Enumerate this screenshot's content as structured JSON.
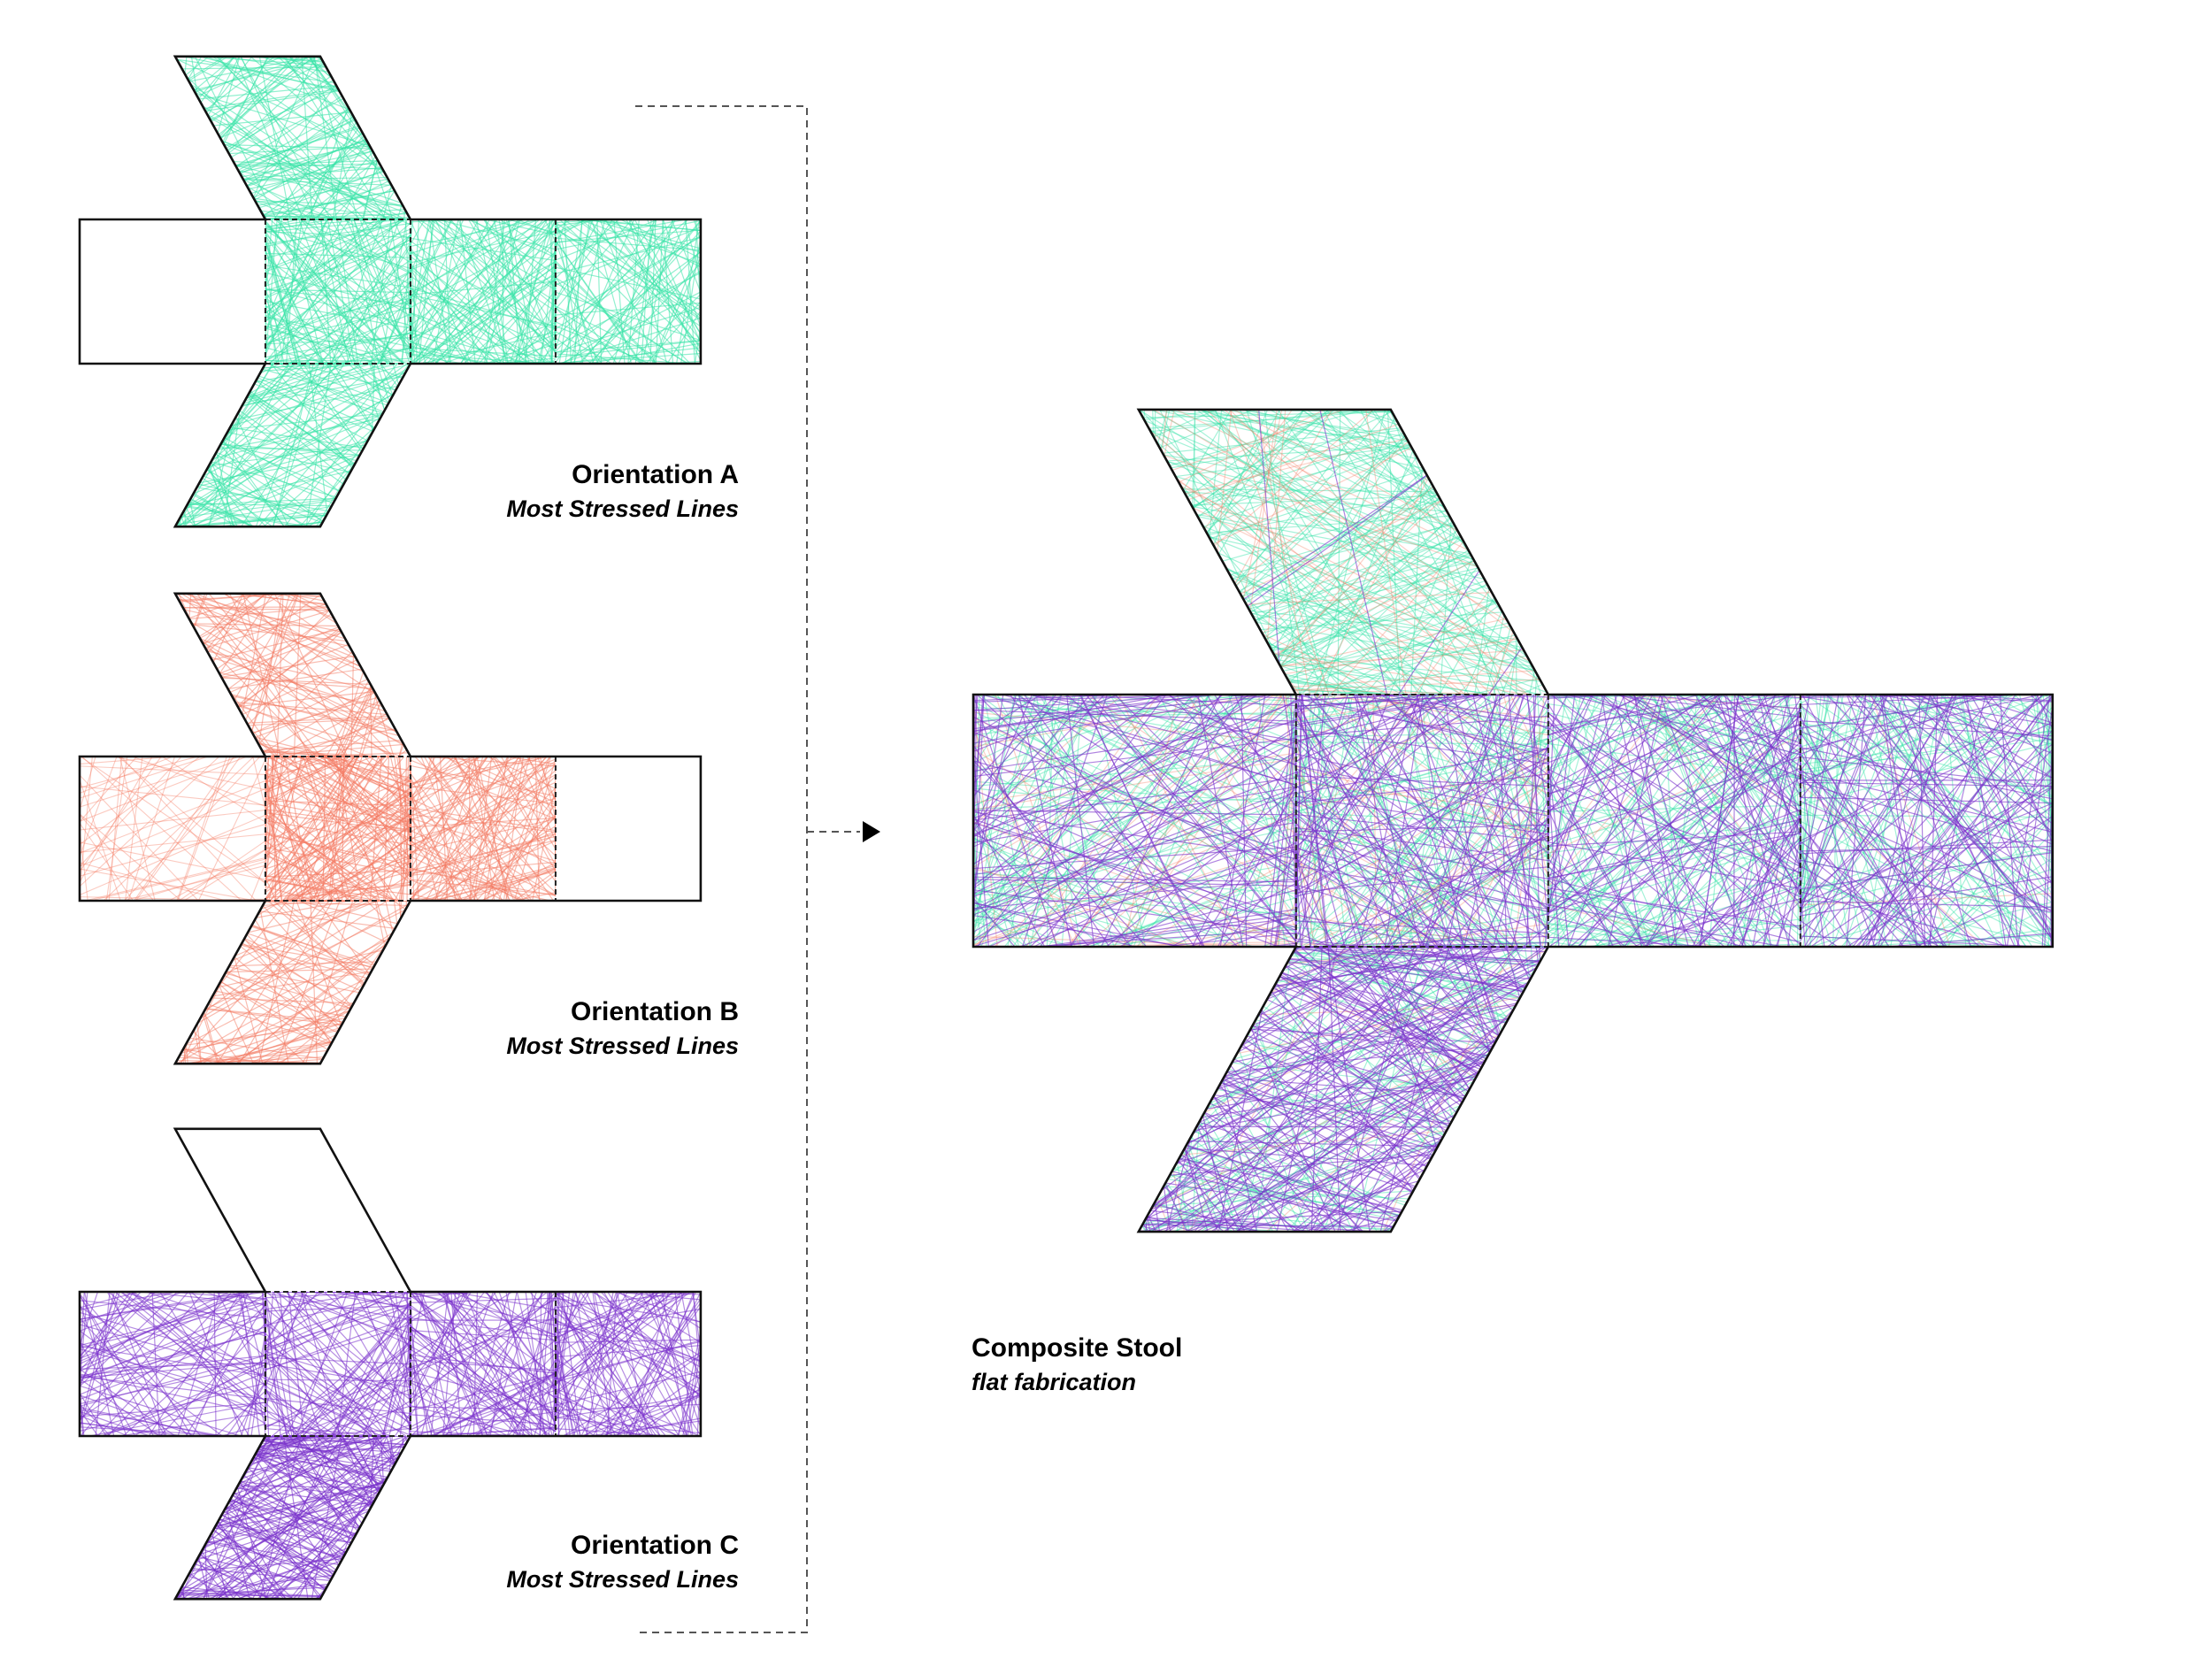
{
  "colors": {
    "orientation_a": "#38e3a8",
    "orientation_b": "#f47a62",
    "orientation_c": "#7a32cc",
    "outline": "#111111",
    "connector": "#555555"
  },
  "panels": [
    {
      "title": "Orientation A",
      "subtitle": "Most Stressed Lines"
    },
    {
      "title": "Orientation B",
      "subtitle": "Most Stressed Lines"
    },
    {
      "title": "Orientation C",
      "subtitle": "Most Stressed Lines"
    }
  ],
  "composite": {
    "title": "Composite Stool",
    "subtitle": "flat fabrication"
  }
}
